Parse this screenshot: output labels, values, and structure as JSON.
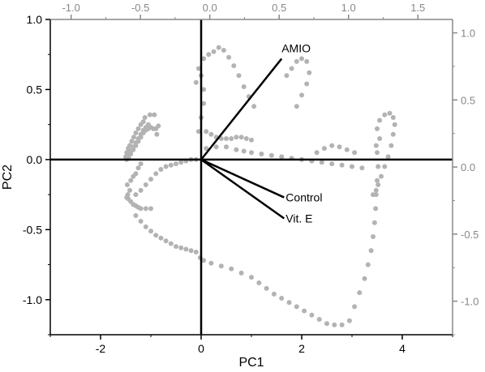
{
  "chart_data": {
    "type": "scatter",
    "title": "",
    "xlabel": "PC1",
    "ylabel": "PC2",
    "xlim": [
      -3,
      5
    ],
    "ylim": [
      -1.25,
      1.0
    ],
    "xticks": [
      -2,
      0,
      2,
      4
    ],
    "xtick_labels": [
      "-2",
      "0",
      "2",
      "4"
    ],
    "yticks": [
      -1.0,
      -0.5,
      0.0,
      0.5,
      1.0
    ],
    "ytick_labels": [
      "-1.0",
      "-0.5",
      "0.0",
      "0.5",
      "1.0"
    ],
    "top_axis": {
      "lim": [
        -1.15,
        1.75
      ],
      "ticks": [
        -1.0,
        -0.5,
        0.0,
        0.5,
        1.0,
        1.5
      ],
      "tick_labels": [
        "-1.0",
        "-0.5",
        "0.0",
        "0.5",
        "1.0",
        "1.5"
      ],
      "color": "#888888"
    },
    "right_axis": {
      "lim": [
        -1.25,
        1.1
      ],
      "ticks": [
        -1.0,
        -0.5,
        0.0,
        0.5,
        1.0
      ],
      "tick_labels": [
        "-1.0",
        "-0.5",
        "0.0",
        "0.5",
        "1.0"
      ],
      "color": "#888888"
    },
    "grid": false,
    "point_color": "#b3b3b3",
    "loadings": [
      {
        "label": "AMIO",
        "x": 1.6,
        "y": 0.72
      },
      {
        "label": "Control",
        "x": 1.65,
        "y": -0.27
      },
      {
        "label": "Vit. E",
        "x": 1.65,
        "y": -0.42
      }
    ],
    "series": [
      {
        "points": [
          [
            -1.5,
            0.02
          ],
          [
            -1.48,
            0.05
          ],
          [
            -1.45,
            0.08
          ],
          [
            -1.42,
            0.1
          ],
          [
            -1.38,
            0.13
          ],
          [
            -1.34,
            0.16
          ],
          [
            -1.3,
            0.19
          ],
          [
            -1.25,
            0.22
          ],
          [
            -1.2,
            0.25
          ],
          [
            -1.15,
            0.27
          ],
          [
            -1.48,
            0.0
          ],
          [
            -1.45,
            0.03
          ],
          [
            -1.4,
            0.06
          ],
          [
            -1.35,
            0.09
          ],
          [
            -1.3,
            0.12
          ],
          [
            -1.25,
            0.15
          ],
          [
            -1.2,
            0.18
          ],
          [
            -1.15,
            0.21
          ],
          [
            -1.1,
            0.23
          ],
          [
            -1.05,
            0.25
          ],
          [
            -1.44,
            0.01
          ],
          [
            -1.4,
            0.04
          ],
          [
            -1.35,
            0.07
          ],
          [
            -1.3,
            0.1
          ],
          [
            -1.25,
            0.13
          ],
          [
            -1.2,
            0.16
          ],
          [
            -1.15,
            0.19
          ],
          [
            -1.1,
            0.21
          ],
          [
            -1.05,
            0.22
          ],
          [
            -1.0,
            0.23
          ],
          [
            -0.95,
            0.22
          ],
          [
            -0.9,
            0.22
          ],
          [
            -0.88,
            0.18
          ],
          [
            -0.85,
            0.24
          ],
          [
            -1.12,
            0.3
          ],
          [
            -1.02,
            0.32
          ],
          [
            -0.93,
            0.32
          ],
          [
            -1.46,
            -0.25
          ],
          [
            -1.45,
            -0.28
          ],
          [
            -1.4,
            -0.3
          ],
          [
            -1.35,
            -0.32
          ],
          [
            -1.3,
            -0.33
          ],
          [
            -1.25,
            -0.34
          ],
          [
            -1.2,
            -0.35
          ],
          [
            -1.1,
            -0.35
          ],
          [
            -1.0,
            -0.35
          ],
          [
            -1.42,
            -0.22
          ],
          [
            -1.47,
            -0.18
          ],
          [
            -1.4,
            -0.15
          ],
          [
            -1.35,
            -0.12
          ],
          [
            -1.3,
            -0.1
          ],
          [
            -1.25,
            -0.06
          ],
          [
            -1.2,
            -0.03
          ],
          [
            -1.48,
            -0.27
          ],
          [
            -1.3,
            -0.25
          ],
          [
            -1.2,
            -0.22
          ],
          [
            -1.1,
            -0.18
          ],
          [
            -1.0,
            -0.14
          ],
          [
            -0.9,
            -0.1
          ],
          [
            -0.8,
            -0.07
          ],
          [
            -0.7,
            -0.05
          ],
          [
            -0.6,
            -0.04
          ],
          [
            -0.5,
            -0.03
          ],
          [
            -0.4,
            -0.02
          ],
          [
            -0.3,
            -0.01
          ],
          [
            -0.2,
            0.0
          ],
          [
            -0.1,
            0.0
          ],
          [
            -1.3,
            -0.4
          ],
          [
            -1.2,
            -0.44
          ],
          [
            -1.1,
            -0.48
          ],
          [
            -1.0,
            -0.51
          ],
          [
            -0.9,
            -0.54
          ],
          [
            -0.8,
            -0.56
          ],
          [
            -0.7,
            -0.58
          ],
          [
            -0.6,
            -0.6
          ],
          [
            -0.5,
            -0.62
          ],
          [
            -0.4,
            -0.63
          ],
          [
            -0.3,
            -0.64
          ],
          [
            -0.2,
            -0.65
          ],
          [
            -0.1,
            -0.66
          ],
          [
            -0.02,
            -0.7
          ],
          [
            0.05,
            -0.72
          ],
          [
            0.2,
            -0.74
          ],
          [
            0.4,
            -0.76
          ],
          [
            0.6,
            -0.78
          ],
          [
            0.8,
            -0.81
          ],
          [
            1.0,
            -0.84
          ],
          [
            1.15,
            -0.88
          ],
          [
            1.3,
            -0.92
          ],
          [
            1.45,
            -0.96
          ],
          [
            1.6,
            -0.99
          ],
          [
            1.75,
            -1.02
          ],
          [
            1.9,
            -1.05
          ],
          [
            2.05,
            -1.08
          ],
          [
            2.2,
            -1.11
          ],
          [
            2.35,
            -1.14
          ],
          [
            2.5,
            -1.17
          ],
          [
            2.65,
            -1.18
          ],
          [
            2.8,
            -1.18
          ],
          [
            2.95,
            -1.15
          ],
          [
            3.05,
            -1.05
          ],
          [
            3.15,
            -0.95
          ],
          [
            3.25,
            -0.85
          ],
          [
            3.32,
            -0.75
          ],
          [
            3.38,
            -0.65
          ],
          [
            3.42,
            -0.55
          ],
          [
            3.45,
            -0.45
          ],
          [
            3.47,
            -0.35
          ],
          [
            3.48,
            -0.25
          ],
          [
            3.5,
            -0.15
          ],
          [
            3.52,
            -0.05
          ],
          [
            3.5,
            0.05
          ],
          [
            3.48,
            0.1
          ],
          [
            3.55,
            0.15
          ],
          [
            3.5,
            0.22
          ],
          [
            3.55,
            0.28
          ],
          [
            3.65,
            0.32
          ],
          [
            3.75,
            0.33
          ],
          [
            3.82,
            0.3
          ],
          [
            3.85,
            0.25
          ],
          [
            3.82,
            0.18
          ],
          [
            3.78,
            0.1
          ],
          [
            3.72,
            0.02
          ],
          [
            3.65,
            -0.05
          ],
          [
            3.58,
            -0.12
          ],
          [
            3.52,
            -0.18
          ],
          [
            3.48,
            -0.22
          ],
          [
            3.42,
            -0.25
          ],
          [
            0.1,
            0.08
          ],
          [
            0.3,
            0.09
          ],
          [
            0.5,
            0.09
          ],
          [
            0.7,
            0.07
          ],
          [
            0.85,
            0.06
          ],
          [
            1.0,
            0.05
          ],
          [
            1.2,
            0.04
          ],
          [
            1.4,
            0.03
          ],
          [
            1.6,
            0.02
          ],
          [
            1.8,
            0.01
          ],
          [
            2.0,
            0.0
          ],
          [
            2.2,
            -0.01
          ],
          [
            2.4,
            -0.02
          ],
          [
            2.6,
            -0.03
          ],
          [
            2.8,
            -0.04
          ],
          [
            3.0,
            -0.05
          ],
          [
            3.2,
            -0.06
          ],
          [
            2.3,
            0.05
          ],
          [
            2.45,
            0.08
          ],
          [
            2.6,
            0.1
          ],
          [
            2.75,
            0.09
          ],
          [
            2.9,
            0.07
          ],
          [
            3.05,
            0.05
          ],
          [
            0.0,
            0.6
          ],
          [
            0.05,
            0.5
          ],
          [
            0.05,
            0.4
          ],
          [
            0.0,
            0.3
          ],
          [
            -0.05,
            0.2
          ],
          [
            0.1,
            0.2
          ],
          [
            0.2,
            0.18
          ],
          [
            0.3,
            0.16
          ],
          [
            0.4,
            0.15
          ],
          [
            0.5,
            0.15
          ],
          [
            0.6,
            0.15
          ],
          [
            0.7,
            0.16
          ],
          [
            0.8,
            0.16
          ],
          [
            0.9,
            0.15
          ],
          [
            1.0,
            0.14
          ],
          [
            -0.1,
            0.55
          ],
          [
            -0.05,
            0.65
          ],
          [
            0.05,
            0.72
          ],
          [
            0.15,
            0.75
          ],
          [
            0.25,
            0.77
          ],
          [
            0.35,
            0.8
          ],
          [
            0.45,
            0.78
          ],
          [
            0.55,
            0.73
          ],
          [
            0.65,
            0.67
          ],
          [
            0.75,
            0.6
          ],
          [
            0.85,
            0.52
          ],
          [
            0.95,
            0.45
          ],
          [
            1.05,
            0.38
          ],
          [
            1.7,
            0.6
          ],
          [
            1.8,
            0.65
          ],
          [
            1.9,
            0.7
          ],
          [
            2.0,
            0.72
          ],
          [
            2.1,
            0.7
          ],
          [
            2.15,
            0.62
          ],
          [
            2.1,
            0.54
          ],
          [
            2.0,
            0.46
          ],
          [
            1.9,
            0.38
          ]
        ]
      }
    ]
  }
}
